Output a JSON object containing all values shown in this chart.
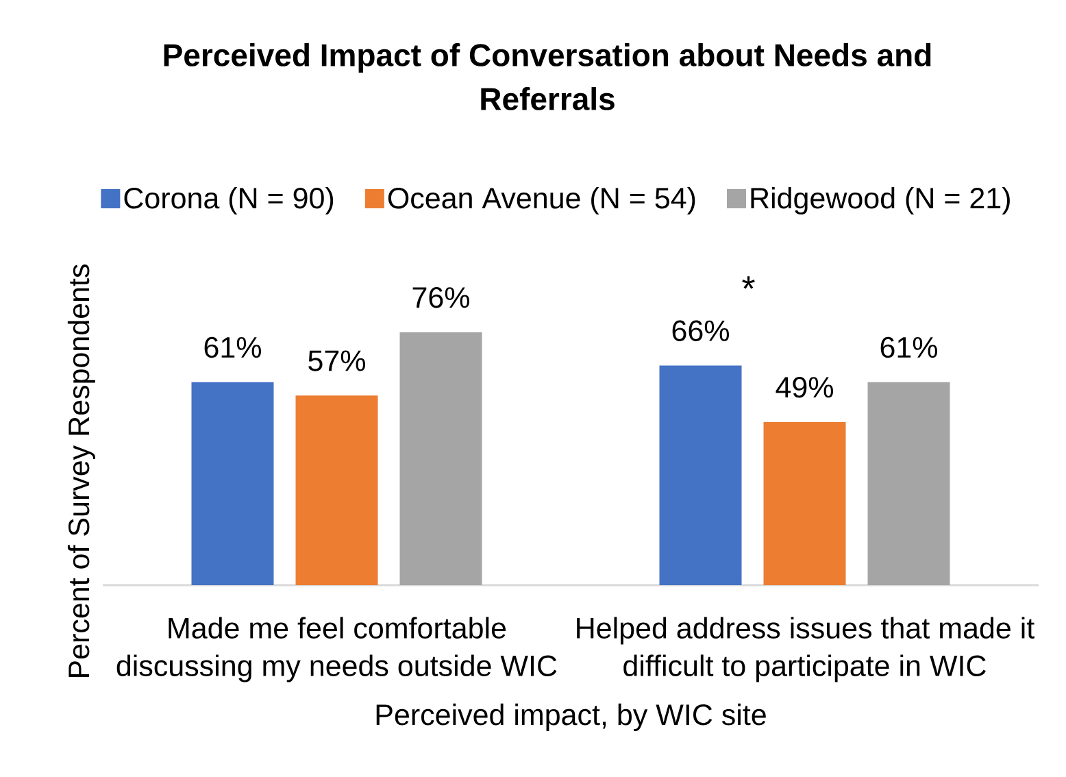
{
  "chart_data": {
    "type": "bar",
    "title": "Perceived Impact of Conversation about Needs and Referrals",
    "xlabel": "Perceived impact, by WIC site",
    "ylabel": "Percent of Survey Respondents",
    "categories": [
      "Made me feel comfortable discussing my needs outside WIC",
      "Helped address issues that made it difficult to participate in WIC"
    ],
    "series": [
      {
        "name": "Corona (N = 90)",
        "color": "#4472c4",
        "values": [
          61,
          66
        ],
        "value_labels": [
          "61%",
          "66%"
        ]
      },
      {
        "name": "Ocean Avenue (N = 54)",
        "color": "#ed7d31",
        "values": [
          57,
          49
        ],
        "value_labels": [
          "57%",
          "49%"
        ]
      },
      {
        "name": "Ridgewood (N = 21)",
        "color": "#a5a5a5",
        "values": [
          76,
          61
        ],
        "value_labels": [
          "76%",
          "61%"
        ]
      }
    ],
    "tick_labels": "x",
    "legend": "top",
    "annotations": [
      "*"
    ]
  }
}
